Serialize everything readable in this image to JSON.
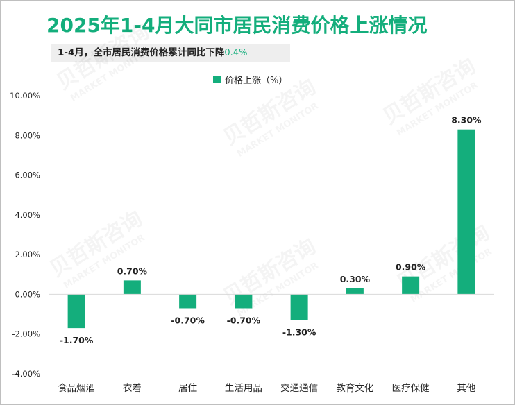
{
  "header": {
    "title": "2025年1-4月大同市居民消费价格上涨情况",
    "subtitle_prefix": "1-4月，全市居民消费价格累计同比下降",
    "subtitle_highlight": "0.4%"
  },
  "watermark": {
    "cn": "贝哲斯咨询",
    "en": "MARKET MONITOR"
  },
  "colors": {
    "bar": "#14ae7c",
    "title": "#14ae7c"
  },
  "chart_data": {
    "type": "bar",
    "categories": [
      "食品烟酒",
      "衣着",
      "居住",
      "生活用品",
      "交通通信",
      "教育文化",
      "医疗保健",
      "其他"
    ],
    "series": [
      {
        "name": "价格上涨（%）",
        "values": [
          -1.7,
          0.7,
          -0.7,
          -0.7,
          -1.3,
          0.3,
          0.9,
          8.3
        ]
      }
    ],
    "data_labels": [
      "-1.70%",
      "0.70%",
      "-0.70%",
      "-0.70%",
      "-1.30%",
      "0.30%",
      "0.90%",
      "8.30%"
    ],
    "y_ticks": [
      "10.00%",
      "8.00%",
      "6.00%",
      "4.00%",
      "2.00%",
      "0.00%",
      "-2.00%",
      "-4.00%"
    ],
    "ylim": [
      -4,
      10
    ],
    "legend_position": "top-center",
    "grid": false
  }
}
